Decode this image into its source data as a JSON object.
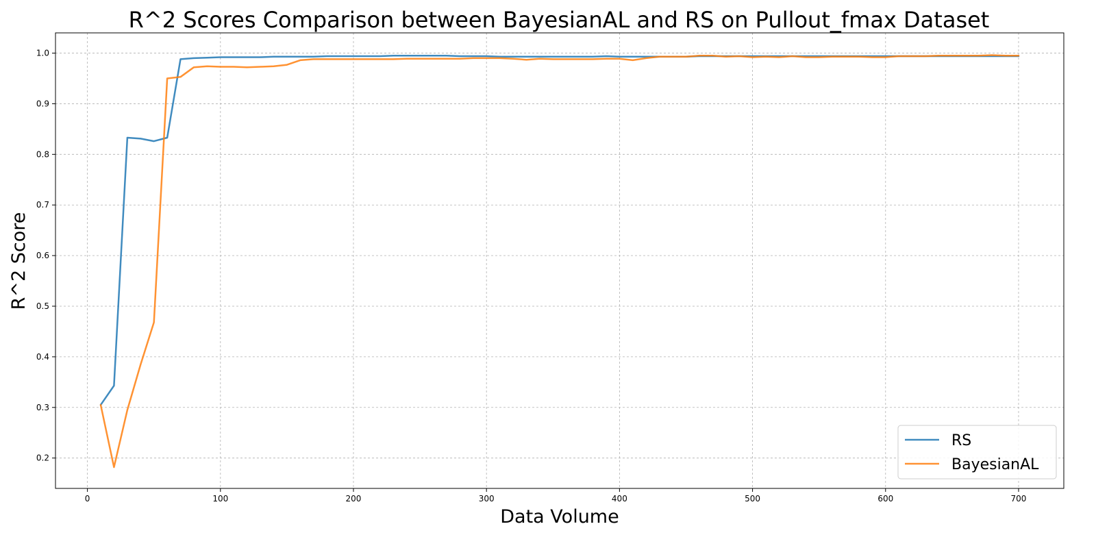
{
  "chart_data": {
    "type": "line",
    "title": "R^2 Scores Comparison between BayesianAL and RS on Pullout_fmax Dataset",
    "xlabel": "Data Volume",
    "ylabel": "R^2 Score",
    "xlim": [
      -24,
      734
    ],
    "ylim": [
      0.14,
      1.04
    ],
    "xticks": [
      0,
      100,
      200,
      300,
      400,
      500,
      600,
      700
    ],
    "yticks": [
      0.2,
      0.3,
      0.4,
      0.5,
      0.6,
      0.7,
      0.8,
      0.9,
      1.0
    ],
    "grid": true,
    "legend_position": "lower-right",
    "x": [
      10,
      20,
      30,
      40,
      50,
      60,
      70,
      80,
      90,
      100,
      110,
      120,
      130,
      140,
      150,
      160,
      170,
      180,
      190,
      200,
      210,
      220,
      230,
      240,
      250,
      260,
      270,
      280,
      290,
      300,
      310,
      320,
      330,
      340,
      350,
      360,
      370,
      380,
      390,
      400,
      410,
      420,
      430,
      440,
      450,
      460,
      470,
      480,
      490,
      500,
      510,
      520,
      530,
      540,
      550,
      560,
      570,
      580,
      590,
      600,
      610,
      620,
      630,
      640,
      650,
      660,
      670,
      680,
      690,
      700
    ],
    "series": [
      {
        "name": "RS",
        "color": "#1f77b4",
        "values": [
          0.305,
          0.343,
          0.833,
          0.831,
          0.826,
          0.833,
          0.988,
          0.99,
          0.991,
          0.992,
          0.992,
          0.992,
          0.992,
          0.993,
          0.993,
          0.993,
          0.993,
          0.994,
          0.994,
          0.994,
          0.994,
          0.994,
          0.995,
          0.995,
          0.995,
          0.995,
          0.995,
          0.994,
          0.994,
          0.994,
          0.993,
          0.993,
          0.993,
          0.993,
          0.993,
          0.993,
          0.993,
          0.993,
          0.994,
          0.993,
          0.993,
          0.993,
          0.993,
          0.993,
          0.993,
          0.994,
          0.994,
          0.994,
          0.994,
          0.994,
          0.994,
          0.994,
          0.994,
          0.994,
          0.994,
          0.994,
          0.994,
          0.994,
          0.994,
          0.994,
          0.994,
          0.994,
          0.994,
          0.994,
          0.994,
          0.994,
          0.994,
          0.994,
          0.994,
          0.994
        ]
      },
      {
        "name": "BayesianAL",
        "color": "#ff7f0e",
        "values": [
          0.305,
          0.182,
          0.295,
          0.385,
          0.468,
          0.95,
          0.953,
          0.972,
          0.974,
          0.973,
          0.973,
          0.972,
          0.973,
          0.974,
          0.977,
          0.986,
          0.988,
          0.988,
          0.988,
          0.988,
          0.988,
          0.988,
          0.988,
          0.989,
          0.989,
          0.989,
          0.989,
          0.989,
          0.99,
          0.99,
          0.99,
          0.989,
          0.987,
          0.989,
          0.988,
          0.988,
          0.988,
          0.988,
          0.989,
          0.989,
          0.986,
          0.99,
          0.993,
          0.993,
          0.993,
          0.995,
          0.995,
          0.993,
          0.994,
          0.992,
          0.993,
          0.992,
          0.994,
          0.992,
          0.992,
          0.993,
          0.993,
          0.993,
          0.992,
          0.992,
          0.994,
          0.994,
          0.994,
          0.995,
          0.995,
          0.995,
          0.995,
          0.996,
          0.995,
          0.995
        ]
      }
    ]
  }
}
